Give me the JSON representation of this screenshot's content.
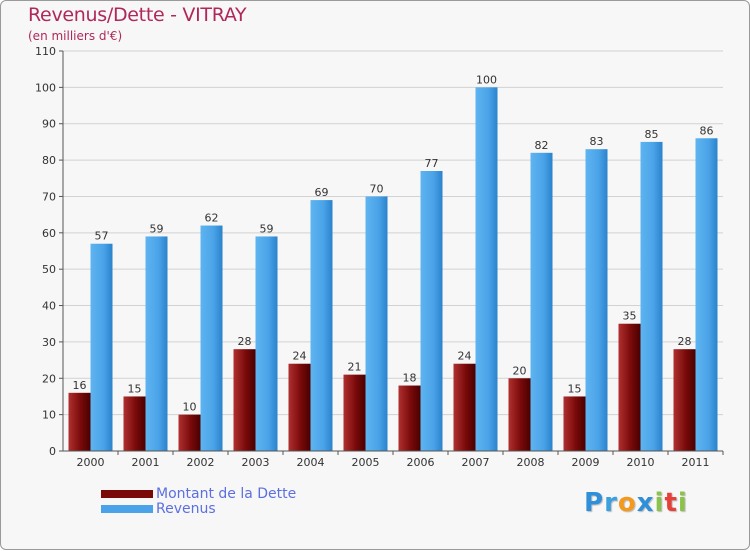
{
  "header": {
    "title": "Revenus/Dette - VITRAY",
    "subtitle": "(en milliers d'€)"
  },
  "legend": {
    "items": [
      {
        "label": "Montant de la Dette",
        "color": "#7a0a0a"
      },
      {
        "label": "Revenus",
        "color": "#4aa3e8"
      }
    ]
  },
  "logo": {
    "text": "Proxiti",
    "letters": [
      {
        "ch": "P",
        "color": "#2f8fd8"
      },
      {
        "ch": "r",
        "color": "#3aa0e0"
      },
      {
        "ch": "o",
        "color": "#f39a1e"
      },
      {
        "ch": "x",
        "color": "#2f8fd8"
      },
      {
        "ch": "i",
        "color": "#8bc34a"
      },
      {
        "ch": "t",
        "color": "#e5413a"
      },
      {
        "ch": "i",
        "color": "#8bc34a"
      }
    ]
  },
  "chart_data": {
    "type": "bar",
    "title": "Revenus/Dette - VITRAY",
    "subtitle": "(en milliers d'€)",
    "categories": [
      "2000",
      "2001",
      "2002",
      "2003",
      "2004",
      "2005",
      "2006",
      "2007",
      "2008",
      "2009",
      "2010",
      "2011"
    ],
    "series": [
      {
        "name": "Montant de la Dette",
        "color": "#7a0a0a",
        "values": [
          16,
          15,
          10,
          28,
          24,
          21,
          18,
          24,
          20,
          15,
          35,
          28
        ]
      },
      {
        "name": "Revenus",
        "color": "#4aa3e8",
        "values": [
          57,
          59,
          62,
          59,
          69,
          70,
          77,
          100,
          82,
          83,
          85,
          86
        ]
      }
    ],
    "ylim": [
      0,
      110
    ],
    "yticks": [
      0,
      10,
      20,
      30,
      40,
      50,
      60,
      70,
      80,
      90,
      100,
      110
    ],
    "grid": true,
    "legend_position": "bottom-left"
  }
}
